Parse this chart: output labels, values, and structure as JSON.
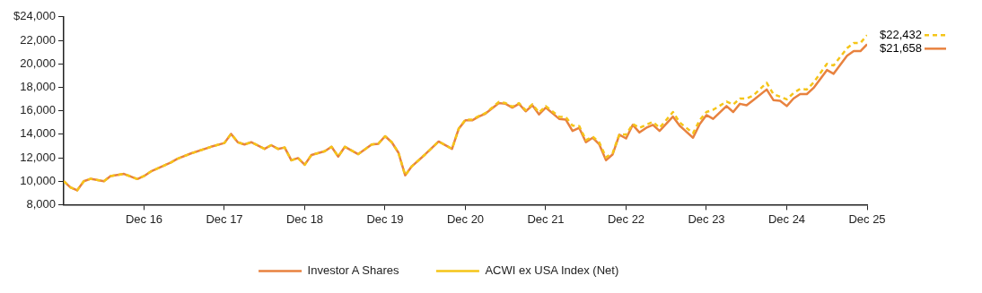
{
  "chart_data": {
    "type": "line",
    "x": [
      "2015-12",
      "2016-01",
      "2016-02",
      "2016-03",
      "2016-04",
      "2016-06",
      "2016-07",
      "2016-09",
      "2016-11",
      "2016-12",
      "2017-01",
      "2017-04",
      "2017-05",
      "2017-07",
      "2017-10",
      "2017-12",
      "2018-01",
      "2018-02",
      "2018-03",
      "2018-04",
      "2018-06",
      "2018-07",
      "2018-08",
      "2018-09",
      "2018-10",
      "2018-11",
      "2018-12",
      "2019-01",
      "2019-03",
      "2019-04",
      "2019-05",
      "2019-06",
      "2019-08",
      "2019-10",
      "2019-11",
      "2019-12",
      "2020-01",
      "2020-02",
      "2020-03",
      "2020-04",
      "2020-06",
      "2020-08",
      "2020-10",
      "2020-11",
      "2020-12",
      "2021-01",
      "2021-02",
      "2021-03",
      "2021-05",
      "2021-06",
      "2021-07",
      "2021-08",
      "2021-09",
      "2021-10",
      "2021-11",
      "2021-12",
      "2022-02",
      "2022-03",
      "2022-04",
      "2022-05",
      "2022-06",
      "2022-07",
      "2022-08",
      "2022-09",
      "2022-10",
      "2022-11",
      "2022-12",
      "2023-01",
      "2023-02",
      "2023-03",
      "2023-04",
      "2023-05",
      "2023-07",
      "2023-08",
      "2023-10",
      "2023-11",
      "2023-12",
      "2024-01",
      "2024-03",
      "2024-04",
      "2024-05",
      "2024-06",
      "2024-07",
      "2024-09",
      "2024-10",
      "2024-11",
      "2024-12",
      "2025-01",
      "2025-02",
      "2025-03",
      "2025-04",
      "2025-06",
      "2025-07",
      "2025-09",
      "2025-10",
      "2025-11",
      "2025-12"
    ],
    "series": [
      {
        "name": "Investor A Shares",
        "color": "#e8823f",
        "line_style": "solid",
        "values": [
          10000,
          9470,
          9220,
          10000,
          10200,
          10000,
          10430,
          10620,
          10180,
          10440,
          10820,
          11590,
          11910,
          12360,
          12930,
          13250,
          14030,
          13320,
          13130,
          13320,
          12750,
          13070,
          12750,
          12870,
          11780,
          11970,
          11400,
          12230,
          12550,
          12930,
          12100,
          12930,
          12300,
          13130,
          13190,
          13830,
          13320,
          12420,
          10500,
          11270,
          12290,
          13380,
          12750,
          14470,
          15180,
          15180,
          15500,
          15760,
          16650,
          16590,
          16270,
          16590,
          15950,
          16460,
          15690,
          16270,
          15310,
          15240,
          14280,
          14540,
          13320,
          13700,
          13130,
          11780,
          12290,
          13960,
          13640,
          14800,
          14150,
          14540,
          14800,
          14280,
          15500,
          14730,
          13700,
          14860,
          15630,
          15310,
          16400,
          15890,
          16590,
          16460,
          16910,
          17810,
          16910,
          16850,
          16400,
          17040,
          17420,
          17420,
          17940,
          19470,
          19150,
          20690,
          21080,
          21080,
          21658
        ],
        "value_labels": [
          null,
          null,
          null,
          null,
          null,
          null,
          null,
          null,
          null,
          null,
          null,
          null,
          null,
          null,
          null,
          null,
          null,
          null,
          null,
          null,
          null,
          null,
          null,
          null,
          null,
          null,
          null,
          null,
          null,
          null,
          null,
          null,
          null,
          null,
          null,
          null,
          null,
          null,
          null,
          null,
          null,
          null,
          null,
          null,
          null,
          null,
          null,
          null,
          null,
          null,
          null,
          null,
          null,
          null,
          null,
          null,
          null,
          null,
          null,
          null,
          null,
          null,
          null,
          null,
          null,
          null,
          null,
          null,
          null,
          null,
          null,
          null,
          null,
          null,
          null,
          null,
          null,
          null,
          null,
          null,
          null,
          null,
          null,
          null,
          null,
          null,
          null,
          null,
          null,
          null,
          null,
          null,
          null,
          null,
          null,
          null,
          "$21,658"
        ]
      },
      {
        "name": "ACWI ex USA Index (Net)",
        "color": "#f5c518",
        "line_style": "dashed",
        "values": [
          10000,
          9470,
          9220,
          10000,
          10200,
          10000,
          10430,
          10620,
          10180,
          10440,
          10820,
          11590,
          11910,
          12360,
          12930,
          13250,
          14030,
          13320,
          13130,
          13320,
          12750,
          13070,
          12750,
          12870,
          11780,
          11970,
          11400,
          12230,
          12550,
          12930,
          12100,
          12930,
          12300,
          13130,
          13190,
          13830,
          13320,
          12420,
          10500,
          11270,
          12290,
          13380,
          12750,
          14470,
          15250,
          15250,
          15550,
          15800,
          16750,
          16650,
          16350,
          16650,
          16050,
          16550,
          15850,
          16400,
          15500,
          15450,
          14730,
          14700,
          13500,
          13800,
          13300,
          12040,
          12400,
          14000,
          13960,
          14870,
          14540,
          14800,
          15050,
          14540,
          15890,
          15000,
          14090,
          15200,
          15890,
          16080,
          16780,
          16530,
          17040,
          17040,
          17300,
          18380,
          17420,
          17200,
          16970,
          17500,
          17870,
          17810,
          18400,
          19990,
          19860,
          21330,
          21780,
          21780,
          22432
        ],
        "value_labels": [
          null,
          null,
          null,
          null,
          null,
          null,
          null,
          null,
          null,
          null,
          null,
          null,
          null,
          null,
          null,
          null,
          null,
          null,
          null,
          null,
          null,
          null,
          null,
          null,
          null,
          null,
          null,
          null,
          null,
          null,
          null,
          null,
          null,
          null,
          null,
          null,
          null,
          null,
          null,
          null,
          null,
          null,
          null,
          null,
          null,
          null,
          null,
          null,
          null,
          null,
          null,
          null,
          null,
          null,
          null,
          null,
          null,
          null,
          null,
          null,
          null,
          null,
          null,
          null,
          null,
          null,
          null,
          null,
          null,
          null,
          null,
          null,
          null,
          null,
          null,
          null,
          null,
          null,
          null,
          null,
          null,
          null,
          null,
          null,
          null,
          null,
          null,
          null,
          null,
          null,
          null,
          null,
          null,
          null,
          null,
          null,
          "$22,432"
        ]
      }
    ],
    "xlim": [
      "2015-12",
      "2025-12"
    ],
    "xticks": [
      {
        "value": "2016-12",
        "label": "Dec 16"
      },
      {
        "value": "2017-12",
        "label": "Dec 17"
      },
      {
        "value": "2018-12",
        "label": "Dec 18"
      },
      {
        "value": "2019-12",
        "label": "Dec 19"
      },
      {
        "value": "2020-12",
        "label": "Dec 20"
      },
      {
        "value": "2021-12",
        "label": "Dec 21"
      },
      {
        "value": "2022-12",
        "label": "Dec 22"
      },
      {
        "value": "2023-12",
        "label": "Dec 23"
      },
      {
        "value": "2024-12",
        "label": "Dec 24"
      },
      {
        "value": "2025-12",
        "label": "Dec 25"
      }
    ],
    "ylim": [
      8000,
      24000
    ],
    "yticks": [
      {
        "value": 8000,
        "label": "8,000"
      },
      {
        "value": 10000,
        "label": "10,000"
      },
      {
        "value": 12000,
        "label": "12,000"
      },
      {
        "value": 14000,
        "label": "14,000"
      },
      {
        "value": 16000,
        "label": "16,000"
      },
      {
        "value": 18000,
        "label": "18,000"
      },
      {
        "value": 20000,
        "label": "20,000"
      },
      {
        "value": 22000,
        "label": "22,000"
      },
      {
        "value": 24000,
        "label": "$24,000"
      }
    ],
    "grid": false,
    "legend": "bottom",
    "marker": "none"
  }
}
